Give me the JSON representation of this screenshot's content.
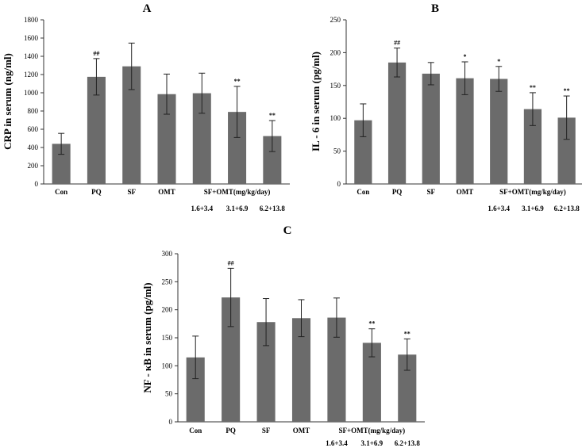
{
  "figure": {
    "categories": [
      "Con",
      "PQ",
      "SF",
      "OMT",
      "",
      "",
      ""
    ],
    "group_label": "SF+OMT(mg/kg/day)",
    "doses": [
      "1.6+3.4",
      "3.1+6.9",
      "6.2+13.8"
    ],
    "bar_color": "#6b6b6b"
  },
  "chart_data": [
    {
      "panel": "A",
      "type": "bar",
      "title": "A",
      "ylabel": "CRP in serum (ng/ml)",
      "ylim": [
        0,
        1800
      ],
      "yticks": [
        0,
        200,
        400,
        600,
        800,
        1000,
        1200,
        1400,
        1600,
        1800
      ],
      "values": [
        440,
        1175,
        1290,
        985,
        995,
        790,
        525
      ],
      "errors": [
        115,
        200,
        255,
        220,
        220,
        280,
        170
      ],
      "annotations": [
        "",
        "##",
        "",
        "",
        "",
        "**",
        "**"
      ]
    },
    {
      "panel": "B",
      "type": "bar",
      "title": "B",
      "ylabel": "IL - 6 in serum (pg/ml)",
      "ylim": [
        0,
        250
      ],
      "yticks": [
        0,
        50,
        100,
        150,
        200,
        250
      ],
      "values": [
        97,
        185,
        168,
        161,
        160,
        114,
        101
      ],
      "errors": [
        25,
        22,
        17,
        25,
        19,
        25,
        33
      ],
      "annotations": [
        "",
        "##",
        "",
        "*",
        "*",
        "**",
        "**"
      ]
    },
    {
      "panel": "C",
      "type": "bar",
      "title": "C",
      "ylabel": "NF - κB in serum (pg/ml)",
      "ylim": [
        0,
        300
      ],
      "yticks": [
        0,
        50,
        100,
        150,
        200,
        250,
        300
      ],
      "values": [
        115,
        222,
        178,
        185,
        186,
        141,
        120
      ],
      "errors": [
        38,
        52,
        42,
        33,
        35,
        25,
        28
      ],
      "annotations": [
        "",
        "##",
        "",
        "",
        "",
        "**",
        "**"
      ]
    }
  ]
}
